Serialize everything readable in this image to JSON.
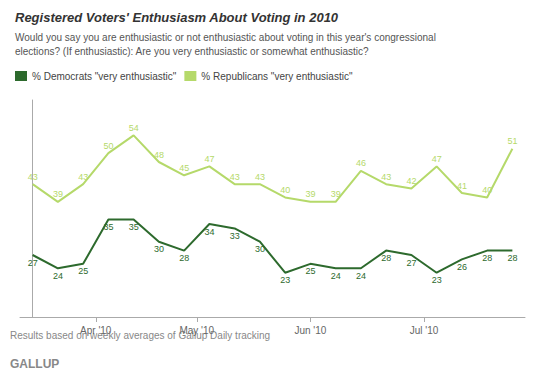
{
  "chart_data": {
    "type": "line",
    "title": "Registered Voters' Enthusiasm About Voting in 2010",
    "subtitle": "Would you say you are enthusiastic or not enthusiastic about voting in this year's congressional\nelections? (If enthusiastic): Are you very enthusiastic or somewhat enthusiastic?",
    "annotations": [
      "Results based on weekly averages of Gallup Daily tracking",
      "GALLUP"
    ],
    "x": [
      0,
      1,
      2,
      3,
      4,
      5,
      6,
      7,
      8,
      9,
      10,
      11,
      12,
      13,
      14,
      15,
      16,
      17,
      18,
      19
    ],
    "series": [
      {
        "name": "% Democrats \"very enthusiastic\"",
        "color": "#2d6a2d",
        "values": [
          27,
          24,
          25,
          35,
          35,
          30,
          28,
          34,
          33,
          30,
          23,
          25,
          24,
          24,
          28,
          27,
          23,
          26,
          28,
          28
        ]
      },
      {
        "name": "% Republicans \"very enthusiastic\"",
        "color": "#b5d96a",
        "values": [
          43,
          39,
          43,
          50,
          54,
          48,
          45,
          47,
          43,
          43,
          40,
          39,
          39,
          46,
          43,
          42,
          47,
          41,
          40,
          51
        ]
      }
    ],
    "xlim": [
      -0.5,
      19.5
    ],
    "xticks": [
      {
        "value": 2.5,
        "label": "Apr '10"
      },
      {
        "value": 6.5,
        "label": "May '10"
      },
      {
        "value": 11.0,
        "label": "Jun '10"
      },
      {
        "value": 15.5,
        "label": "Jul '10"
      }
    ],
    "ylim": [
      13,
      62
    ],
    "tick_labels": "x",
    "grid": false,
    "legend": "upper left",
    "data_labels": true
  }
}
